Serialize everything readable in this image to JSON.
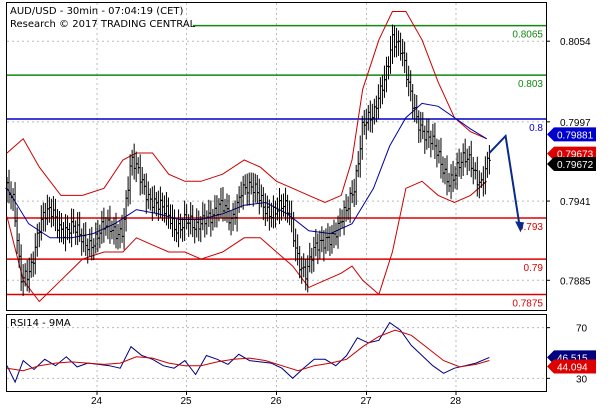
{
  "header": {
    "line1": "AUD/USD - 30min - 07:04:19 (CET)",
    "line2": "Research © 2017 TRADING CENTRAL"
  },
  "rsi_label": "RSI14 - 9MA",
  "colors": {
    "candle": "#000000",
    "bollinger": "#cc0000",
    "ma": "#0000aa",
    "resistance": "#118811",
    "pivot": "#0000cc",
    "support": "#dd0000",
    "arrow": "#0a2a8a",
    "rsi": "#000080",
    "rsi_ma": "#cc0000"
  },
  "chart_data": [
    {
      "type": "candlestick",
      "x_tick_labels": [
        "24",
        "25",
        "26",
        "27",
        "28"
      ],
      "y_tick_labels": [
        "0.8054",
        "0.7997",
        "0.7941",
        "0.7885"
      ],
      "ylim": [
        0.7864,
        0.8081
      ],
      "levels": [
        {
          "label": "0.8065",
          "value": 0.8065,
          "kind": "resistance"
        },
        {
          "label": "0.803",
          "value": 0.803,
          "kind": "resistance"
        },
        {
          "label": "0.8",
          "value": 0.7999,
          "kind": "pivot"
        },
        {
          "label": "0.793",
          "value": 0.7929,
          "kind": "support"
        },
        {
          "label": "0.79",
          "value": 0.79,
          "kind": "support"
        },
        {
          "label": "0.7875",
          "value": 0.7875,
          "kind": "support"
        }
      ],
      "price_boxes": [
        {
          "label": "0.79881",
          "value": 0.79881,
          "bg": "#0000cc",
          "fg": "#ffffff"
        },
        {
          "label": "0.79673",
          "value": 0.79745,
          "bg": "#dd0000",
          "fg": "#ffffff"
        },
        {
          "label": "0.79672",
          "value": 0.79672,
          "bg": "#000000",
          "fg": "#ffffff"
        }
      ],
      "forecast": [
        [
          0.7975,
          0.7987
        ],
        [
          0.7985,
          0.7921
        ]
      ],
      "close_path": [
        [
          0.0,
          0.795
        ],
        [
          0.012,
          0.7935
        ],
        [
          0.025,
          0.7885
        ],
        [
          0.045,
          0.79
        ],
        [
          0.06,
          0.792
        ],
        [
          0.085,
          0.7935
        ],
        [
          0.11,
          0.792
        ],
        [
          0.135,
          0.7915
        ],
        [
          0.165,
          0.7915
        ],
        [
          0.19,
          0.792
        ],
        [
          0.215,
          0.7925
        ],
        [
          0.23,
          0.7965
        ],
        [
          0.25,
          0.7955
        ],
        [
          0.27,
          0.7945
        ],
        [
          0.29,
          0.793
        ],
        [
          0.31,
          0.7925
        ],
        [
          0.33,
          0.793
        ],
        [
          0.35,
          0.7915
        ],
        [
          0.37,
          0.7935
        ],
        [
          0.395,
          0.7935
        ],
        [
          0.415,
          0.7925
        ],
        [
          0.435,
          0.7955
        ],
        [
          0.455,
          0.7945
        ],
        [
          0.475,
          0.794
        ],
        [
          0.5,
          0.7935
        ],
        [
          0.525,
          0.793
        ],
        [
          0.54,
          0.7905
        ],
        [
          0.555,
          0.789
        ],
        [
          0.575,
          0.7905
        ],
        [
          0.595,
          0.792
        ],
        [
          0.615,
          0.792
        ],
        [
          0.63,
          0.793
        ],
        [
          0.645,
          0.7955
        ],
        [
          0.66,
          0.8
        ],
        [
          0.68,
          0.7995
        ],
        [
          0.7,
          0.803
        ],
        [
          0.715,
          0.806
        ],
        [
          0.73,
          0.8045
        ],
        [
          0.745,
          0.802
        ],
        [
          0.765,
          0.8
        ],
        [
          0.78,
          0.7985
        ],
        [
          0.8,
          0.797
        ],
        [
          0.82,
          0.796
        ],
        [
          0.845,
          0.7965
        ],
        [
          0.86,
          0.7968
        ],
        [
          0.88,
          0.7958
        ],
        [
          0.895,
          0.797
        ]
      ],
      "bollinger_upper": [
        [
          0.0,
          0.7975
        ],
        [
          0.03,
          0.7985
        ],
        [
          0.06,
          0.7965
        ],
        [
          0.1,
          0.7945
        ],
        [
          0.14,
          0.7945
        ],
        [
          0.18,
          0.795
        ],
        [
          0.215,
          0.797
        ],
        [
          0.24,
          0.7975
        ],
        [
          0.27,
          0.7975
        ],
        [
          0.3,
          0.796
        ],
        [
          0.33,
          0.7955
        ],
        [
          0.36,
          0.7955
        ],
        [
          0.4,
          0.796
        ],
        [
          0.44,
          0.797
        ],
        [
          0.47,
          0.7965
        ],
        [
          0.5,
          0.7955
        ],
        [
          0.53,
          0.795
        ],
        [
          0.56,
          0.7945
        ],
        [
          0.59,
          0.794
        ],
        [
          0.62,
          0.7945
        ],
        [
          0.64,
          0.797
        ],
        [
          0.66,
          0.802
        ],
        [
          0.69,
          0.8055
        ],
        [
          0.715,
          0.8075
        ],
        [
          0.74,
          0.8075
        ],
        [
          0.77,
          0.8055
        ],
        [
          0.8,
          0.8025
        ],
        [
          0.83,
          0.8
        ],
        [
          0.86,
          0.799
        ],
        [
          0.89,
          0.7985
        ]
      ],
      "bollinger_lower": [
        [
          0.0,
          0.793
        ],
        [
          0.03,
          0.7885
        ],
        [
          0.06,
          0.787
        ],
        [
          0.1,
          0.7885
        ],
        [
          0.14,
          0.79
        ],
        [
          0.18,
          0.7905
        ],
        [
          0.215,
          0.7905
        ],
        [
          0.24,
          0.7915
        ],
        [
          0.27,
          0.791
        ],
        [
          0.3,
          0.7905
        ],
        [
          0.33,
          0.7905
        ],
        [
          0.36,
          0.79
        ],
        [
          0.4,
          0.7905
        ],
        [
          0.44,
          0.7915
        ],
        [
          0.47,
          0.7915
        ],
        [
          0.5,
          0.7905
        ],
        [
          0.53,
          0.7895
        ],
        [
          0.56,
          0.788
        ],
        [
          0.59,
          0.7885
        ],
        [
          0.62,
          0.789
        ],
        [
          0.64,
          0.7895
        ],
        [
          0.66,
          0.7885
        ],
        [
          0.69,
          0.7875
        ],
        [
          0.715,
          0.7905
        ],
        [
          0.74,
          0.795
        ],
        [
          0.77,
          0.7955
        ],
        [
          0.8,
          0.7945
        ],
        [
          0.83,
          0.794
        ],
        [
          0.86,
          0.7945
        ],
        [
          0.89,
          0.7955
        ]
      ],
      "moving_average": [
        [
          0.0,
          0.795
        ],
        [
          0.04,
          0.7925
        ],
        [
          0.08,
          0.7915
        ],
        [
          0.12,
          0.7915
        ],
        [
          0.16,
          0.7918
        ],
        [
          0.2,
          0.7925
        ],
        [
          0.24,
          0.7935
        ],
        [
          0.28,
          0.7932
        ],
        [
          0.32,
          0.7928
        ],
        [
          0.36,
          0.7928
        ],
        [
          0.4,
          0.7932
        ],
        [
          0.44,
          0.7938
        ],
        [
          0.48,
          0.794
        ],
        [
          0.52,
          0.7932
        ],
        [
          0.56,
          0.792
        ],
        [
          0.6,
          0.7918
        ],
        [
          0.64,
          0.7925
        ],
        [
          0.68,
          0.795
        ],
        [
          0.71,
          0.798
        ],
        [
          0.74,
          0.8
        ],
        [
          0.77,
          0.801
        ],
        [
          0.8,
          0.8008
        ],
        [
          0.83,
          0.8
        ],
        [
          0.86,
          0.7992
        ],
        [
          0.89,
          0.7985
        ]
      ]
    },
    {
      "type": "line",
      "title": "RSI14 - 9MA",
      "y_tick_labels": [
        "70",
        "30"
      ],
      "ylim": [
        20,
        80
      ],
      "value_boxes": [
        {
          "label": "46.515",
          "value": 46.515,
          "bg": "#000080",
          "fg": "#ffffff"
        },
        {
          "label": "44.094",
          "value": 44.094,
          "bg": "#dd0000",
          "fg": "#ffffff"
        }
      ],
      "series": [
        {
          "name": "RSI14",
          "points": [
            [
              0.0,
              40
            ],
            [
              0.015,
              27
            ],
            [
              0.03,
              44
            ],
            [
              0.05,
              37
            ],
            [
              0.07,
              45
            ],
            [
              0.09,
              40
            ],
            [
              0.11,
              47
            ],
            [
              0.13,
              39
            ],
            [
              0.15,
              42
            ],
            [
              0.17,
              41
            ],
            [
              0.19,
              40
            ],
            [
              0.21,
              38
            ],
            [
              0.23,
              55
            ],
            [
              0.25,
              48
            ],
            [
              0.27,
              45
            ],
            [
              0.29,
              40
            ],
            [
              0.31,
              38
            ],
            [
              0.33,
              44
            ],
            [
              0.35,
              33
            ],
            [
              0.37,
              48
            ],
            [
              0.39,
              45
            ],
            [
              0.41,
              41
            ],
            [
              0.43,
              49
            ],
            [
              0.45,
              44
            ],
            [
              0.47,
              43
            ],
            [
              0.49,
              42
            ],
            [
              0.51,
              38
            ],
            [
              0.53,
              30
            ],
            [
              0.55,
              38
            ],
            [
              0.57,
              45
            ],
            [
              0.59,
              45
            ],
            [
              0.61,
              40
            ],
            [
              0.63,
              48
            ],
            [
              0.65,
              62
            ],
            [
              0.67,
              58
            ],
            [
              0.69,
              60
            ],
            [
              0.71,
              74
            ],
            [
              0.73,
              68
            ],
            [
              0.75,
              56
            ],
            [
              0.77,
              48
            ],
            [
              0.79,
              40
            ],
            [
              0.81,
              34
            ],
            [
              0.83,
              38
            ],
            [
              0.85,
              40
            ],
            [
              0.87,
              42
            ],
            [
              0.895,
              46.515
            ]
          ]
        },
        {
          "name": "9MA",
          "points": [
            [
              0.0,
              38
            ],
            [
              0.03,
              36
            ],
            [
              0.06,
              40
            ],
            [
              0.09,
              42
            ],
            [
              0.12,
              43
            ],
            [
              0.15,
              42
            ],
            [
              0.18,
              41
            ],
            [
              0.21,
              42
            ],
            [
              0.24,
              47
            ],
            [
              0.27,
              46
            ],
            [
              0.3,
              42
            ],
            [
              0.33,
              40
            ],
            [
              0.36,
              40
            ],
            [
              0.39,
              43
            ],
            [
              0.42,
              45
            ],
            [
              0.45,
              46
            ],
            [
              0.48,
              44
            ],
            [
              0.51,
              40
            ],
            [
              0.54,
              36
            ],
            [
              0.57,
              40
            ],
            [
              0.6,
              42
            ],
            [
              0.63,
              45
            ],
            [
              0.66,
              55
            ],
            [
              0.69,
              63
            ],
            [
              0.72,
              68
            ],
            [
              0.75,
              64
            ],
            [
              0.78,
              54
            ],
            [
              0.81,
              44
            ],
            [
              0.84,
              39
            ],
            [
              0.87,
              41
            ],
            [
              0.895,
              44.094
            ]
          ]
        }
      ]
    }
  ]
}
